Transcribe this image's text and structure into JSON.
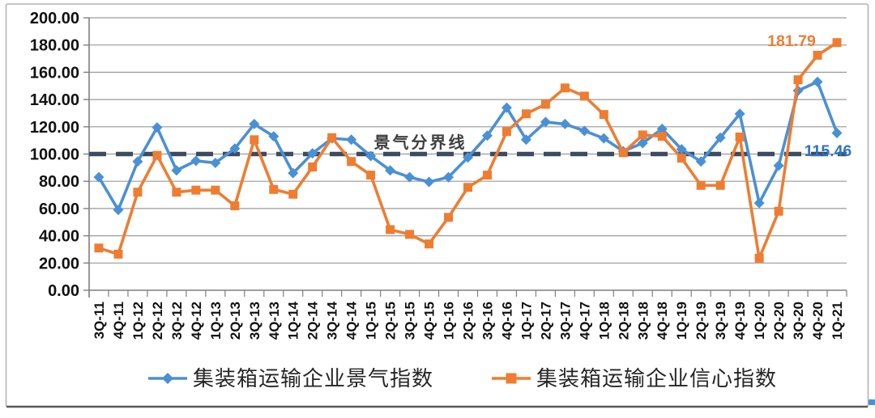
{
  "chart_data": {
    "type": "line",
    "title": "",
    "xlabel": "",
    "ylabel": "",
    "categories": [
      "3Q-11",
      "4Q-11",
      "1Q-12",
      "2Q-12",
      "3Q-12",
      "4Q-12",
      "1Q-13",
      "2Q-13",
      "3Q-13",
      "4Q-13",
      "1Q-14",
      "2Q-14",
      "3Q-14",
      "4Q-14",
      "1Q-15",
      "2Q-15",
      "3Q-15",
      "4Q-15",
      "1Q-16",
      "2Q-16",
      "3Q-16",
      "4Q-16",
      "1Q-17",
      "2Q-17",
      "3Q-17",
      "4Q-17",
      "1Q-18",
      "2Q-18",
      "3Q-18",
      "4Q-18",
      "1Q-19",
      "2Q-19",
      "3Q-19",
      "4Q-19",
      "1Q-20",
      "2Q-20",
      "3Q-20",
      "4Q-20",
      "1Q-21"
    ],
    "series": [
      {
        "name": "集装箱运输企业景气指数",
        "marker": "diamond",
        "color": "#4a90d5",
        "values": [
          83,
          59,
          94.5,
          119.5,
          88,
          95,
          93.5,
          104,
          122,
          113,
          86,
          100.5,
          111.5,
          110.5,
          98.5,
          88,
          83,
          79.5,
          83,
          97.5,
          113.5,
          134,
          110.5,
          123.5,
          122,
          117,
          111.5,
          102,
          108,
          118.5,
          103.5,
          94.5,
          112,
          129.5,
          64,
          91.5,
          146.5,
          153,
          115.46
        ]
      },
      {
        "name": "集装箱运输企业信心指数",
        "marker": "square",
        "color": "#ee7d31",
        "values": [
          31,
          26.5,
          72,
          99,
          72,
          73.5,
          73.5,
          62,
          110.5,
          74,
          70.5,
          90.5,
          112,
          94.5,
          84.5,
          44.5,
          41,
          34,
          53.5,
          75.5,
          84.5,
          116.5,
          129.5,
          136.5,
          148.5,
          142.5,
          129,
          101,
          114,
          113,
          97,
          77,
          77,
          112.5,
          23.5,
          58,
          154.5,
          172.5,
          181.79
        ]
      }
    ],
    "ylim": [
      0,
      200
    ],
    "ytick_step": 20,
    "ytick_labels": [
      "0.00",
      "20.00",
      "40.00",
      "60.00",
      "80.00",
      "100.00",
      "120.00",
      "140.00",
      "160.00",
      "180.00",
      "200.00"
    ],
    "grid": true,
    "legend_position": "bottom",
    "reference_line": {
      "value": 100,
      "label": "景气分界线",
      "color": "#3c4b60"
    },
    "annotations": [
      {
        "text": "181.79",
        "series": "集装箱运输企业信心指数",
        "point": "1Q-21",
        "color": "#ed7d31"
      },
      {
        "text": "115.46",
        "series": "集装箱运输企业景气指数",
        "point": "1Q-21",
        "color": "#2d74c9"
      }
    ],
    "colors": {
      "gridline": "#9a9a9a",
      "axis": "#7f7f7f",
      "tick_text": "#111111",
      "frame_border": "#b3b3b3",
      "frame_bottom": "#595959",
      "divider_label_color": "#3f3f3f"
    }
  }
}
